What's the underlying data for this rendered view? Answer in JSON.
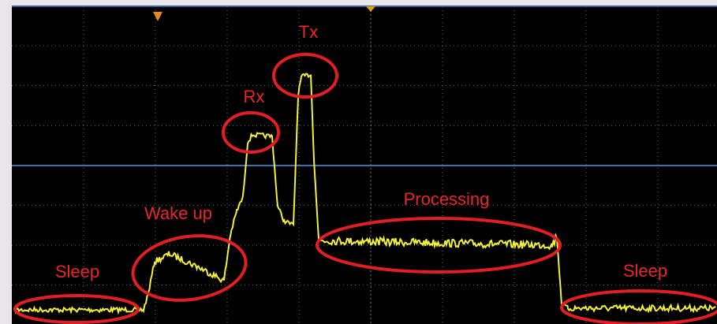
{
  "annotations": [
    {
      "label": "Sleep"
    },
    {
      "label": "Wake up"
    },
    {
      "label": "Rx"
    },
    {
      "label": "Tx"
    },
    {
      "label": "Processing"
    },
    {
      "label": "Sleep"
    }
  ]
}
